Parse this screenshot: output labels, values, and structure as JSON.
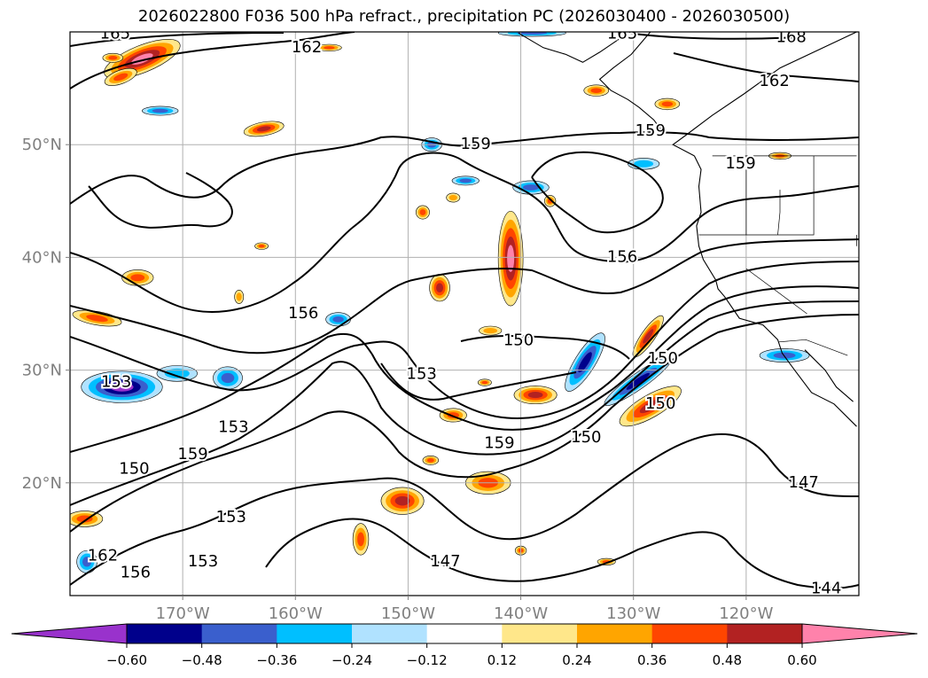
{
  "chart_data": {
    "type": "map-contour",
    "title": "2026022800 F036 500 hPa refract., precipitation PC (2026030400 - 2026030500)",
    "lon_range": [
      -180,
      -110
    ],
    "lat_range": [
      10,
      60
    ],
    "x_ticks": [
      {
        "lon": -170,
        "label": "170°W"
      },
      {
        "lon": -160,
        "label": "160°W"
      },
      {
        "lon": -150,
        "label": "150°W"
      },
      {
        "lon": -140,
        "label": "140°W"
      },
      {
        "lon": -130,
        "label": "130°W"
      },
      {
        "lon": -120,
        "label": "120°W"
      }
    ],
    "y_ticks": [
      {
        "lat": 20,
        "label": "20°N"
      },
      {
        "lat": 30,
        "label": "30°N"
      },
      {
        "lat": 40,
        "label": "40°N"
      },
      {
        "lat": 50,
        "label": "50°N"
      }
    ],
    "grid": true,
    "colorbar": {
      "orientation": "horizontal",
      "extend": "both",
      "levels": [
        -0.6,
        -0.48,
        -0.36,
        -0.24,
        -0.12,
        0.12,
        0.24,
        0.36,
        0.48,
        0.6
      ],
      "tick_labels": [
        "−0.60",
        "−0.48",
        "−0.36",
        "−0.24",
        "−0.12",
        "0.12",
        "0.24",
        "0.36",
        "0.48",
        "0.60"
      ],
      "colors": [
        "#9932cc",
        "#00008b",
        "#3a5fcd",
        "#00bfff",
        "#b0e2ff",
        "#ffffff",
        "#ffe78a",
        "#ffa500",
        "#ff4500",
        "#b22222",
        "#ff82ab"
      ]
    },
    "contour_labels": [
      {
        "value": "165",
        "lon": -176.0,
        "lat": 59.8
      },
      {
        "value": "162",
        "lon": -159.0,
        "lat": 58.6
      },
      {
        "value": "165",
        "lon": -131.0,
        "lat": 59.8
      },
      {
        "value": "168",
        "lon": -116.0,
        "lat": 59.5
      },
      {
        "value": "162",
        "lon": -117.5,
        "lat": 55.6
      },
      {
        "value": "159",
        "lon": -144.0,
        "lat": 50.0
      },
      {
        "value": "159",
        "lon": -128.5,
        "lat": 51.2
      },
      {
        "value": "159",
        "lon": -120.5,
        "lat": 48.3
      },
      {
        "value": "156",
        "lon": -131.0,
        "lat": 40.0
      },
      {
        "value": "156",
        "lon": -159.3,
        "lat": 35.0
      },
      {
        "value": "150",
        "lon": -140.2,
        "lat": 32.6
      },
      {
        "value": "150",
        "lon": -127.4,
        "lat": 31.0
      },
      {
        "value": "153",
        "lon": -148.8,
        "lat": 29.6
      },
      {
        "value": "153",
        "lon": -175.9,
        "lat": 28.9
      },
      {
        "value": "153",
        "lon": -165.5,
        "lat": 24.9
      },
      {
        "value": "159",
        "lon": -169.1,
        "lat": 22.5
      },
      {
        "value": "159",
        "lon": -141.9,
        "lat": 23.5
      },
      {
        "value": "150",
        "lon": -134.2,
        "lat": 24.0
      },
      {
        "value": "150",
        "lon": -127.6,
        "lat": 27.0
      },
      {
        "value": "150",
        "lon": -174.3,
        "lat": 21.2
      },
      {
        "value": "147",
        "lon": -114.9,
        "lat": 20.0
      },
      {
        "value": "153",
        "lon": -165.7,
        "lat": 16.9
      },
      {
        "value": "153",
        "lon": -168.2,
        "lat": 13.0
      },
      {
        "value": "156",
        "lon": -174.2,
        "lat": 12.0
      },
      {
        "value": "162",
        "lon": -177.1,
        "lat": 13.5
      },
      {
        "value": "147",
        "lon": -146.7,
        "lat": 13.0
      },
      {
        "value": "144",
        "lon": -112.9,
        "lat": 10.6
      }
    ],
    "precip_features": [
      {
        "lon": -140.9,
        "lat": 39.9,
        "rlon": 1.1,
        "rlat": 4.2,
        "level": 0.6
      },
      {
        "lon": -173.6,
        "lat": 57.6,
        "rlon": 3.6,
        "rlat": 1.2,
        "level": 0.6,
        "rot": -22
      },
      {
        "lon": -134.3,
        "lat": 30.7,
        "rlon": 0.9,
        "rlat": 3.0,
        "level": -0.48,
        "rot": 32
      },
      {
        "lon": -175.4,
        "lat": 28.5,
        "rlon": 3.6,
        "rlat": 1.4,
        "level": -0.6
      },
      {
        "lon": -166.0,
        "lat": 29.3,
        "rlon": 1.3,
        "rlat": 1.0,
        "level": -0.36
      },
      {
        "lon": -129.6,
        "lat": 29.0,
        "rlon": 3.6,
        "rlat": 0.7,
        "level": -0.48,
        "rot": -35
      },
      {
        "lon": -128.7,
        "lat": 33.0,
        "rlon": 2.2,
        "rlat": 0.6,
        "level": 0.48,
        "rot": -55
      },
      {
        "lon": -128.5,
        "lat": 26.8,
        "rlon": 3.1,
        "rlat": 1.0,
        "level": 0.48,
        "rot": -30
      },
      {
        "lon": -138.7,
        "lat": 27.8,
        "rlon": 1.9,
        "rlat": 0.8,
        "level": 0.48
      },
      {
        "lon": -142.9,
        "lat": 20.0,
        "rlon": 2.0,
        "rlat": 1.0,
        "level": 0.36
      },
      {
        "lon": -146.0,
        "lat": 26.0,
        "rlon": 1.2,
        "rlat": 0.6,
        "level": 0.36
      },
      {
        "lon": -150.5,
        "lat": 18.4,
        "rlon": 1.9,
        "rlat": 1.2,
        "level": 0.48
      },
      {
        "lon": -154.2,
        "lat": 15.0,
        "rlon": 0.7,
        "rlat": 1.4,
        "level": 0.36
      },
      {
        "lon": -147.2,
        "lat": 37.3,
        "rlon": 0.9,
        "rlat": 1.2,
        "level": 0.48
      },
      {
        "lon": -142.7,
        "lat": 33.5,
        "rlon": 1.0,
        "rlat": 0.4,
        "level": 0.24
      },
      {
        "lon": -148.7,
        "lat": 44.0,
        "rlon": 0.6,
        "rlat": 0.6,
        "level": 0.36
      },
      {
        "lon": -146.0,
        "lat": 45.3,
        "rlon": 0.6,
        "rlat": 0.4,
        "level": 0.24
      },
      {
        "lon": -177.6,
        "lat": 34.6,
        "rlon": 2.2,
        "rlat": 0.6,
        "level": 0.36,
        "rot": 10
      },
      {
        "lon": -176.2,
        "lat": 57.7,
        "rlon": 0.9,
        "rlat": 0.4,
        "level": 0.36
      },
      {
        "lon": -175.5,
        "lat": 56.0,
        "rlon": 1.5,
        "rlat": 0.6,
        "level": 0.36,
        "rot": -20
      },
      {
        "lon": -162.8,
        "lat": 51.4,
        "rlon": 1.8,
        "rlat": 0.6,
        "level": 0.48,
        "rot": -10
      },
      {
        "lon": -174.0,
        "lat": 38.2,
        "rlon": 1.4,
        "rlat": 0.7,
        "level": 0.36
      },
      {
        "lon": -127.0,
        "lat": 53.6,
        "rlon": 1.1,
        "rlat": 0.5,
        "level": 0.36
      },
      {
        "lon": -178.7,
        "lat": 16.8,
        "rlon": 1.6,
        "rlat": 0.7,
        "level": 0.36
      },
      {
        "lon": -147.9,
        "lat": 50.0,
        "rlon": 0.9,
        "rlat": 0.6,
        "level": -0.36
      },
      {
        "lon": -144.9,
        "lat": 46.8,
        "rlon": 1.2,
        "rlat": 0.4,
        "level": -0.36
      },
      {
        "lon": -139.1,
        "lat": 46.2,
        "rlon": 1.6,
        "rlat": 0.6,
        "level": -0.36
      },
      {
        "lon": -129.1,
        "lat": 48.3,
        "rlon": 1.4,
        "rlat": 0.5,
        "level": -0.24
      },
      {
        "lon": -156.2,
        "lat": 34.5,
        "rlon": 1.1,
        "rlat": 0.6,
        "level": -0.36
      },
      {
        "lon": -170.5,
        "lat": 29.7,
        "rlon": 1.8,
        "rlat": 0.7,
        "level": -0.24
      },
      {
        "lon": -178.5,
        "lat": 13.0,
        "rlon": 0.9,
        "rlat": 1.0,
        "level": -0.36
      },
      {
        "lon": -133.3,
        "lat": 54.8,
        "rlon": 1.1,
        "rlat": 0.5,
        "level": 0.36
      },
      {
        "lon": -116.6,
        "lat": 31.3,
        "rlon": 2.2,
        "rlat": 0.6,
        "level": -0.36
      },
      {
        "lon": -117.0,
        "lat": 49.0,
        "rlon": 1.0,
        "rlat": 0.3,
        "level": 0.36
      },
      {
        "lon": -139.0,
        "lat": 59.9,
        "rlon": 3.0,
        "rlat": 0.3,
        "level": -0.36
      },
      {
        "lon": -172.0,
        "lat": 53.0,
        "rlon": 1.6,
        "rlat": 0.4,
        "level": -0.36
      },
      {
        "lon": -165.0,
        "lat": 36.5,
        "rlon": 0.4,
        "rlat": 0.6,
        "level": 0.24
      },
      {
        "lon": -163.0,
        "lat": 41.0,
        "rlon": 0.6,
        "rlat": 0.3,
        "level": 0.36
      },
      {
        "lon": -157.0,
        "lat": 58.6,
        "rlon": 1.1,
        "rlat": 0.3,
        "level": 0.36
      },
      {
        "lon": -148.0,
        "lat": 22.0,
        "rlon": 0.7,
        "rlat": 0.4,
        "level": 0.36
      },
      {
        "lon": -137.4,
        "lat": 45.0,
        "rlon": 0.5,
        "rlat": 0.5,
        "level": 0.36
      },
      {
        "lon": -143.2,
        "lat": 28.9,
        "rlon": 0.6,
        "rlat": 0.3,
        "level": 0.36
      },
      {
        "lon": -132.4,
        "lat": 13.0,
        "rlon": 0.8,
        "rlat": 0.3,
        "level": 0.36
      },
      {
        "lon": -140.0,
        "lat": 14.0,
        "rlon": 0.5,
        "rlat": 0.4,
        "level": 0.36
      }
    ],
    "coastline_paths": [
      [
        [
          -110.2,
          60
        ],
        [
          -117.0,
          56.8
        ],
        [
          -120.2,
          54.5
        ],
        [
          -123.0,
          52.6
        ],
        [
          -125.4,
          50.8
        ],
        [
          -126.5,
          50.0
        ],
        [
          -124.6,
          49.0
        ]
      ],
      [
        [
          -124.6,
          49.0
        ],
        [
          -124.0,
          47.8
        ],
        [
          -124.2,
          46.3
        ],
        [
          -124.0,
          44.0
        ],
        [
          -124.4,
          42.8
        ],
        [
          -124.2,
          41.0
        ],
        [
          -123.8,
          39.8
        ],
        [
          -122.7,
          38.0
        ],
        [
          -122.5,
          37.2
        ],
        [
          -121.9,
          36.5
        ],
        [
          -120.6,
          34.6
        ],
        [
          -118.5,
          34.0
        ],
        [
          -117.2,
          32.7
        ],
        [
          -116.8,
          31.5
        ],
        [
          -115.7,
          30.0
        ],
        [
          -114.2,
          28.0
        ],
        [
          -112.2,
          27.0
        ],
        [
          -110.2,
          25.0
        ]
      ],
      [
        [
          -114.8,
          31.8
        ],
        [
          -113.0,
          30.0
        ],
        [
          -112.0,
          28.5
        ],
        [
          -110.5,
          27.2
        ]
      ],
      [
        [
          -128.5,
          60
        ],
        [
          -130.2,
          58.0
        ],
        [
          -131.8,
          56.8
        ],
        [
          -133.0,
          55.8
        ],
        [
          -132.0,
          54.8
        ],
        [
          -130.5,
          54.0
        ],
        [
          -129.5,
          53.3
        ],
        [
          -128.2,
          52.2
        ],
        [
          -127.3,
          51.0
        ]
      ],
      [
        [
          -130.5,
          59.9
        ],
        [
          -133.0,
          58.2
        ],
        [
          -134.5,
          57.3
        ],
        [
          -136.0,
          58.0
        ],
        [
          -138.0,
          58.6
        ],
        [
          -140.2,
          59.9
        ]
      ]
    ],
    "border_paths": [
      [
        [
          -123.0,
          49.0
        ],
        [
          -110.2,
          49.0
        ]
      ],
      [
        [
          -120.0,
          49.0
        ],
        [
          -120.0,
          42.0
        ],
        [
          -124.2,
          42.0
        ]
      ],
      [
        [
          -114.0,
          49.0
        ],
        [
          -114.0,
          42.0
        ],
        [
          -120.0,
          42.0
        ]
      ],
      [
        [
          -120.0,
          39.0
        ],
        [
          -114.6,
          35.0
        ]
      ],
      [
        [
          -117.1,
          32.5
        ],
        [
          -114.7,
          32.7
        ],
        [
          -111.0,
          31.3
        ]
      ],
      [
        [
          -117.0,
          46.0
        ],
        [
          -117.0,
          44.0
        ],
        [
          -117.2,
          42.0
        ]
      ],
      [
        [
          -110.2,
          41.0
        ],
        [
          -110.2,
          42.0
        ]
      ]
    ]
  }
}
